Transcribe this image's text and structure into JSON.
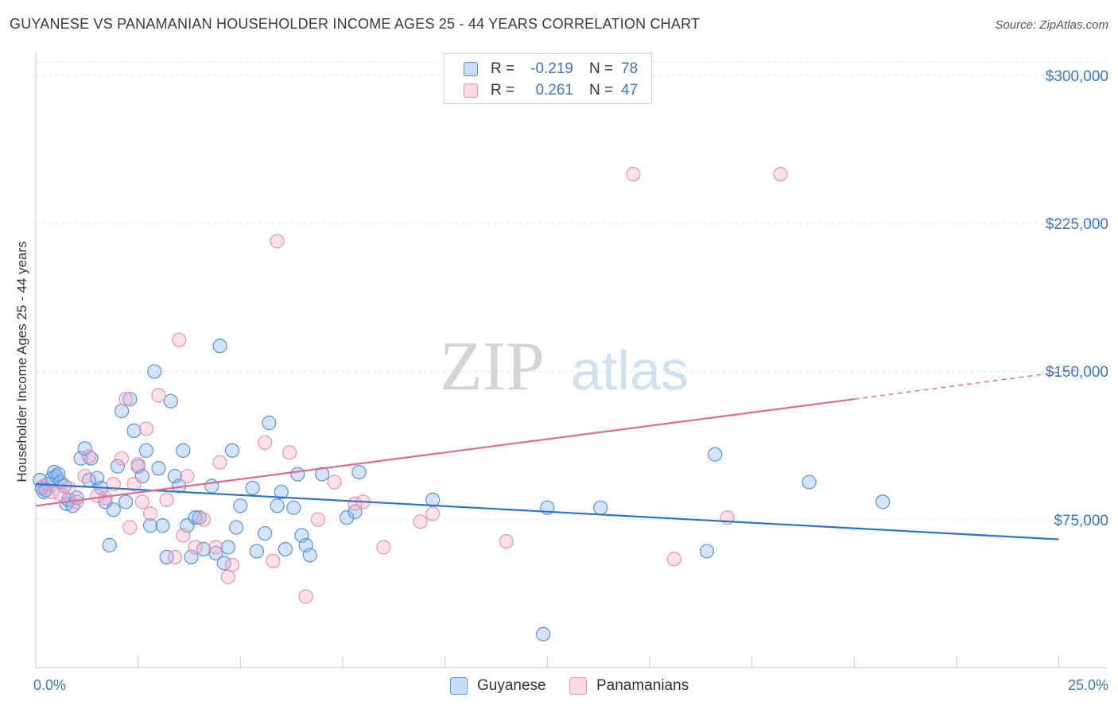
{
  "title": "GUYANESE VS PANAMANIAN HOUSEHOLDER INCOME AGES 25 - 44 YEARS CORRELATION CHART",
  "source": "Source: ZipAtlas.com",
  "watermark": {
    "zip": "ZIP",
    "atlas": "atlas"
  },
  "colors": {
    "guyanese_fill": "rgba(130,178,238,0.35)",
    "guyanese_stroke": "#5b93d6",
    "guyanese_line": "#2f72cc",
    "panamanian_fill": "rgba(248,170,195,0.35)",
    "panamanian_stroke": "#e793ae",
    "panamanian_line": "#e06a94",
    "tick_text": "#3b78c7",
    "grid": "#e3e3e3"
  },
  "legend": {
    "rows": [
      {
        "r_label": "R =",
        "r_value": "-0.219",
        "n_label": "N =",
        "n_value": "78"
      },
      {
        "r_label": "R =",
        "r_value": "0.261",
        "n_label": "N =",
        "n_value": "47"
      }
    ],
    "bottom": [
      "Guyanese",
      "Panamanians"
    ]
  },
  "chart_data": {
    "type": "scatter",
    "title": "GUYANESE VS PANAMANIAN HOUSEHOLDER INCOME AGES 25 - 44 YEARS CORRELATION CHART",
    "xlabel": "",
    "ylabel": "Householder Income Ages 25 - 44 years",
    "xlim": [
      0,
      26
    ],
    "ylim": [
      0,
      310000
    ],
    "x_tick_labels": [
      "0.0%",
      "25.0%"
    ],
    "y_ticks": [
      75000,
      150000,
      225000,
      300000
    ],
    "y_tick_labels": [
      "$75,000",
      "$150,000",
      "$225,000",
      "$300,000"
    ],
    "grid": true,
    "legend_position": "top-center",
    "series": [
      {
        "name": "Guyanese",
        "r": -0.219,
        "n": 78,
        "trend": {
          "x": [
            0,
            25
          ],
          "y": [
            93000,
            65000
          ]
        },
        "points": [
          [
            0.1,
            95000
          ],
          [
            0.15,
            91000
          ],
          [
            0.2,
            89000
          ],
          [
            0.3,
            93000
          ],
          [
            0.4,
            96000
          ],
          [
            0.45,
            99000
          ],
          [
            0.5,
            97000
          ],
          [
            0.55,
            98000
          ],
          [
            0.6,
            94000
          ],
          [
            0.7,
            92000
          ],
          [
            0.75,
            83000
          ],
          [
            0.8,
            85000
          ],
          [
            0.9,
            82000
          ],
          [
            1.0,
            86000
          ],
          [
            1.1,
            106000
          ],
          [
            1.2,
            111000
          ],
          [
            1.3,
            95000
          ],
          [
            1.35,
            106000
          ],
          [
            1.5,
            96000
          ],
          [
            1.6,
            91000
          ],
          [
            1.7,
            84000
          ],
          [
            1.8,
            62000
          ],
          [
            1.9,
            80000
          ],
          [
            2.0,
            102000
          ],
          [
            2.1,
            130000
          ],
          [
            2.2,
            84000
          ],
          [
            2.3,
            136000
          ],
          [
            2.4,
            120000
          ],
          [
            2.5,
            102000
          ],
          [
            2.6,
            97000
          ],
          [
            2.7,
            110000
          ],
          [
            2.8,
            72000
          ],
          [
            2.9,
            150000
          ],
          [
            3.0,
            101000
          ],
          [
            3.1,
            72000
          ],
          [
            3.2,
            56000
          ],
          [
            3.3,
            135000
          ],
          [
            3.4,
            97000
          ],
          [
            3.5,
            92000
          ],
          [
            3.6,
            110000
          ],
          [
            3.7,
            72000
          ],
          [
            3.8,
            56000
          ],
          [
            3.9,
            76000
          ],
          [
            4.0,
            76000
          ],
          [
            4.1,
            60000
          ],
          [
            4.3,
            92000
          ],
          [
            4.4,
            58000
          ],
          [
            4.5,
            163000
          ],
          [
            4.6,
            53000
          ],
          [
            4.7,
            61000
          ],
          [
            4.8,
            110000
          ],
          [
            4.9,
            71000
          ],
          [
            5.0,
            82000
          ],
          [
            5.3,
            91000
          ],
          [
            5.4,
            59000
          ],
          [
            5.6,
            68000
          ],
          [
            5.7,
            124000
          ],
          [
            5.9,
            82000
          ],
          [
            6.0,
            89000
          ],
          [
            6.1,
            60000
          ],
          [
            6.3,
            81000
          ],
          [
            6.4,
            98000
          ],
          [
            6.5,
            67000
          ],
          [
            6.6,
            62000
          ],
          [
            6.7,
            57000
          ],
          [
            7.0,
            98000
          ],
          [
            7.6,
            76000
          ],
          [
            7.8,
            79000
          ],
          [
            7.9,
            99000
          ],
          [
            9.7,
            85000
          ],
          [
            12.4,
            17000
          ],
          [
            12.5,
            81000
          ],
          [
            13.8,
            81000
          ],
          [
            16.4,
            59000
          ],
          [
            16.6,
            108000
          ],
          [
            18.9,
            94000
          ],
          [
            20.7,
            84000
          ],
          [
            0.25,
            90000
          ]
        ]
      },
      {
        "name": "Panamanians",
        "r": 0.261,
        "n": 47,
        "trend": {
          "x": [
            0,
            20
          ],
          "y": [
            82000,
            136000
          ]
        },
        "trend_dashed": {
          "x": [
            20,
            25.5
          ],
          "y": [
            136000,
            151000
          ]
        },
        "points": [
          [
            0.2,
            92000
          ],
          [
            0.4,
            89000
          ],
          [
            0.6,
            88000
          ],
          [
            0.8,
            91000
          ],
          [
            1.0,
            84000
          ],
          [
            1.2,
            97000
          ],
          [
            1.3,
            107000
          ],
          [
            1.5,
            87000
          ],
          [
            1.7,
            86000
          ],
          [
            1.9,
            93000
          ],
          [
            2.1,
            106000
          ],
          [
            2.2,
            136000
          ],
          [
            2.3,
            71000
          ],
          [
            2.4,
            93000
          ],
          [
            2.5,
            103000
          ],
          [
            2.6,
            84000
          ],
          [
            2.7,
            121000
          ],
          [
            2.8,
            78000
          ],
          [
            3.0,
            138000
          ],
          [
            3.2,
            85000
          ],
          [
            3.4,
            56000
          ],
          [
            3.5,
            166000
          ],
          [
            3.6,
            67000
          ],
          [
            3.7,
            97000
          ],
          [
            3.9,
            61000
          ],
          [
            4.1,
            75000
          ],
          [
            4.4,
            61000
          ],
          [
            4.5,
            104000
          ],
          [
            4.7,
            46000
          ],
          [
            4.8,
            52000
          ],
          [
            5.6,
            114000
          ],
          [
            5.8,
            54000
          ],
          [
            5.9,
            216000
          ],
          [
            6.2,
            109000
          ],
          [
            6.6,
            36000
          ],
          [
            6.9,
            75000
          ],
          [
            7.3,
            94000
          ],
          [
            7.8,
            83000
          ],
          [
            8.0,
            84000
          ],
          [
            8.5,
            61000
          ],
          [
            9.4,
            74000
          ],
          [
            9.7,
            78000
          ],
          [
            11.5,
            64000
          ],
          [
            14.6,
            250000
          ],
          [
            15.6,
            55000
          ],
          [
            16.9,
            76000
          ],
          [
            18.2,
            250000
          ]
        ]
      }
    ]
  }
}
